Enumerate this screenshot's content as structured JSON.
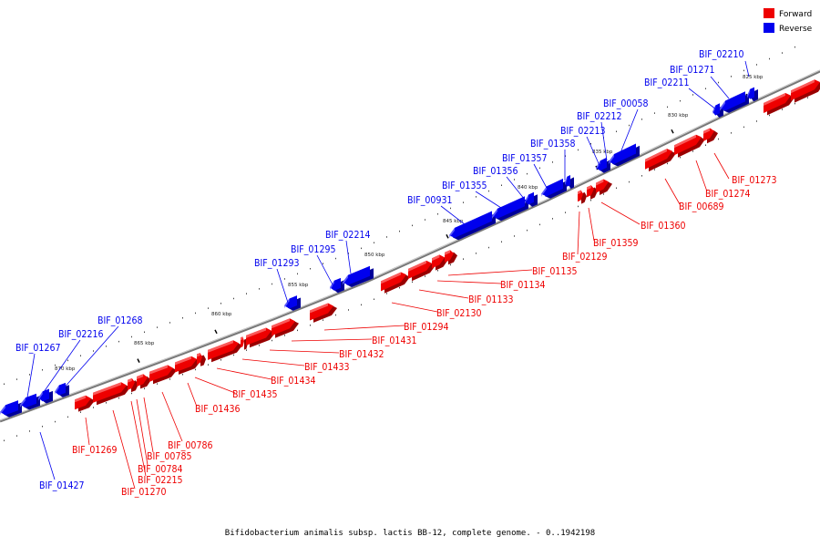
{
  "legend": [
    {
      "label": "Forward",
      "color": "#ee0000"
    },
    {
      "label": "Reverse",
      "color": "#0000ee"
    }
  ],
  "footer": "Bifidobacterium animalis subsp. lactis BB-12, complete genome. - 0..1942198",
  "ticks": [
    "825 kbp",
    "830 kbp",
    "835 kbp",
    "840 kbp",
    "845 kbp",
    "850 kbp",
    "855 kbp",
    "860 kbp",
    "865 kbp",
    "870 kbp"
  ],
  "colors": {
    "forward": "#ee0000",
    "forward_light": "#ff8080",
    "forward_dark": "#990000",
    "reverse": "#0000ee",
    "reverse_light": "#8080ff",
    "reverse_dark": "#000099",
    "backbone": "#888888"
  },
  "reverse_genes": [
    "BIF_02210",
    "BIF_01271",
    "BIF_02211",
    "BIF_00058",
    "BIF_02212",
    "BIF_02213",
    "BIF_01358",
    "BIF_01357",
    "BIF_01356",
    "BIF_01355",
    "BIF_00931",
    "BIF_02214",
    "BIF_01295",
    "BIF_01293",
    "BIF_01268",
    "BIF_02216",
    "BIF_01267",
    "BIF_01427"
  ],
  "forward_genes": [
    "BIF_01273",
    "BIF_01274",
    "BIF_00689",
    "BIF_01360",
    "BIF_01359",
    "BIF_02129",
    "BIF_01135",
    "BIF_01134",
    "BIF_01133",
    "BIF_02130",
    "BIF_01294",
    "BIF_01431",
    "BIF_01432",
    "BIF_01433",
    "BIF_01434",
    "BIF_01435",
    "BIF_01436",
    "BIF_00786",
    "BIF_00785",
    "BIF_00784",
    "BIF_02215",
    "BIF_01270",
    "BIF_01269"
  ]
}
